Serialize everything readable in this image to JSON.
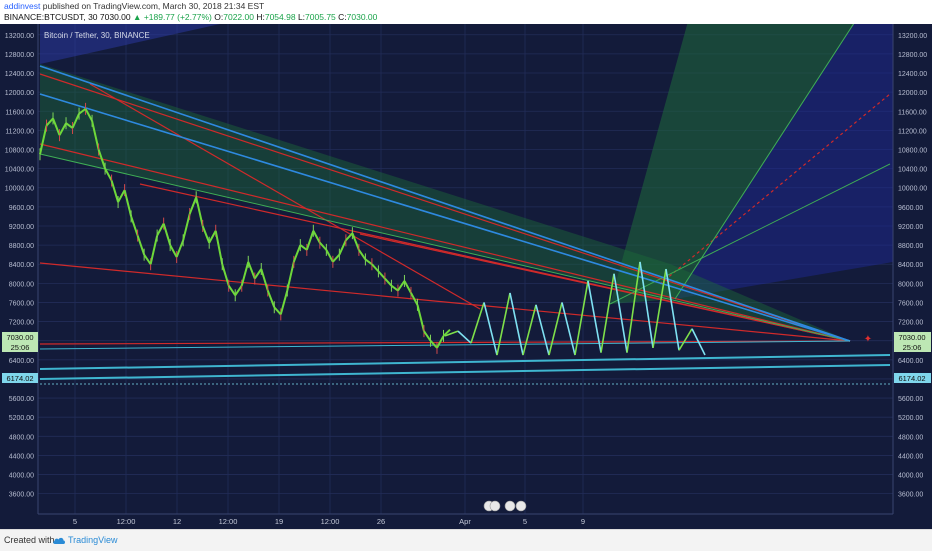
{
  "header": {
    "author": "addinvest",
    "published_text": "published on TradingView.com, March 30, 2018 21:34 EST",
    "symbol": "BINANCE:BTCUSDT, 30",
    "last": "7030.00",
    "change": "+189.77 (+2.77%)",
    "o_label": "O:",
    "o": "7022.00",
    "h_label": "H:",
    "h": "7054.98",
    "l_label": "L:",
    "l": "7005.75",
    "c_label": "C:",
    "c": "7030.00"
  },
  "legend": "Bitcoin / Tether, 30, BINANCE",
  "price_tags": {
    "last": "7030.00",
    "countdown": "25:06",
    "level": "6174.02"
  },
  "x_labels": [
    "5",
    "12:00",
    "12",
    "12:00",
    "19",
    "12:00",
    "26",
    "Apr",
    "5",
    "9"
  ],
  "footer": {
    "created": "Created with",
    "brand": "TradingView"
  },
  "colors": {
    "plot_bg": "#131b3a",
    "green": "#6ed83a",
    "cyan": "#7fe1f2",
    "red": "#d02a2a",
    "trend_blue": "#2e89e0",
    "support": "#3fb6d0"
  },
  "chart_data": {
    "type": "line",
    "title": "Bitcoin / Tether, 30, BINANCE",
    "y_ticks": [
      3600,
      4000,
      4400,
      4800,
      5200,
      5600,
      6000,
      6400,
      6800,
      7200,
      7600,
      8000,
      8400,
      8800,
      9200,
      9600,
      10000,
      10400,
      10800,
      11200,
      11600,
      12000,
      12400,
      12800,
      13200
    ],
    "ylim": [
      3300,
      13300
    ],
    "grid": true,
    "series": [
      {
        "values": [
          10700,
          11300,
          11450,
          11100,
          11350,
          11250,
          11550,
          11650,
          11400,
          10800,
          10400,
          10150,
          9700,
          9950,
          9400,
          9000,
          8600,
          8400,
          9000,
          9250,
          8800,
          8550,
          8900,
          9450,
          9800,
          9200,
          8850,
          9100,
          8400,
          7950,
          7750,
          7950,
          8450,
          8100,
          8300,
          7850,
          7500,
          7350,
          7850,
          8450,
          8800,
          8700,
          9100,
          8850,
          8700,
          8450,
          8600,
          8900,
          9050,
          8700,
          8500,
          8400,
          8250,
          8100,
          7950,
          7850,
          8050,
          7800,
          7550,
          7000,
          6800,
          6650,
          6900,
          7030
        ]
      },
      {
        "values": [
          6900,
          7000,
          6750,
          7600,
          6500,
          7800,
          6500,
          7550,
          6500,
          7600,
          6500,
          8050,
          6550,
          8200,
          6550,
          8450,
          6650,
          8300,
          6600,
          7050,
          6500
        ]
      }
    ]
  }
}
